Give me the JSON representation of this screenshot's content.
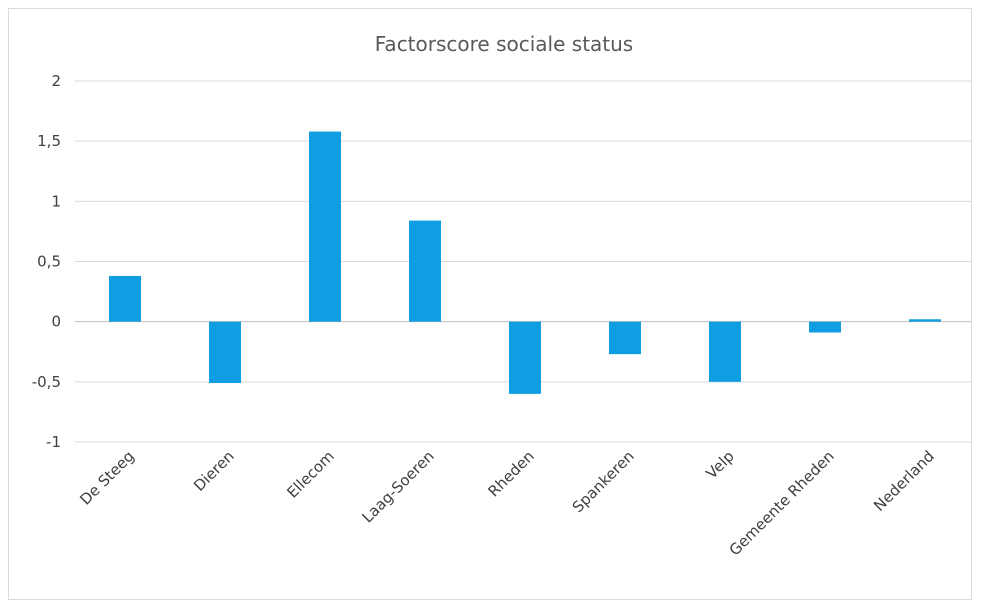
{
  "chart_data": {
    "type": "bar",
    "title": "Factorscore sociale status",
    "xlabel": "",
    "ylabel": "",
    "categories": [
      "De Steeg",
      "Dieren",
      "Ellecom",
      "Laag-Soeren",
      "Rheden",
      "Spankeren",
      "Velp",
      "Gemeente Rheden",
      "Nederland"
    ],
    "values": [
      0.38,
      -0.51,
      1.58,
      0.84,
      -0.6,
      -0.27,
      -0.5,
      -0.09,
      0.02
    ],
    "ylim": [
      -1,
      2
    ],
    "yticks": [
      2,
      1.5,
      1,
      0.5,
      0,
      -0.5,
      -1
    ],
    "ytick_labels": [
      "2",
      "1,5",
      "1",
      "0,5",
      "0",
      "-0,5",
      "-1"
    ],
    "grid": true,
    "legend": "none",
    "bar_color": "#0f9ee1",
    "grid_color": "#d9d9d9"
  }
}
